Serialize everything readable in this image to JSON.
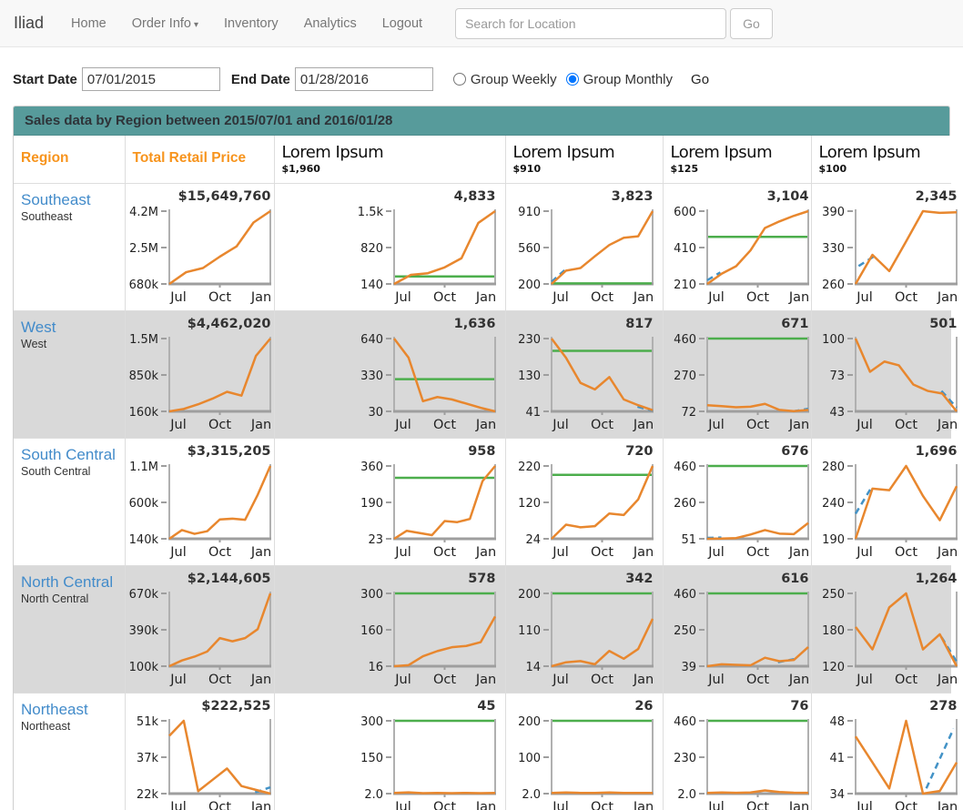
{
  "navbar": {
    "brand": "Iliad",
    "items": [
      {
        "label": "Home"
      },
      {
        "label": "Order Info",
        "caret": true
      },
      {
        "label": "Inventory"
      },
      {
        "label": "Analytics"
      },
      {
        "label": "Logout"
      }
    ],
    "search_placeholder": "Search for Location",
    "go_label": "Go"
  },
  "filters": {
    "start_label": "Start Date",
    "start_value": "07/01/2015",
    "end_label": "End Date",
    "end_value": "01/28/2016",
    "radio_weekly": "Group Weekly",
    "radio_monthly": "Group Monthly",
    "selected": "Group Monthly",
    "go_label": "Go"
  },
  "panel": {
    "heading": "Sales data by Region between 2015/07/01 and 2016/01/28"
  },
  "colors": {
    "accent_orange": "#f7941d",
    "line_orange": "#e8872e",
    "ref_green": "#4cae4c",
    "dash_blue": "#4292c6",
    "teal_header": "#579b9b",
    "row_shade": "#d9d9d9",
    "link_blue": "#428bca"
  },
  "table": {
    "columns": [
      {
        "label": "Region",
        "accent": true
      },
      {
        "label": "Total Retail Price",
        "accent": true
      },
      {
        "label": "Lorem Ipsum",
        "sub": "$1,960"
      },
      {
        "label": "Lorem Ipsum",
        "sub": "$910"
      },
      {
        "label": "Lorem Ipsum",
        "sub": "$125"
      },
      {
        "label": "Lorem Ipsum",
        "sub": "$100"
      }
    ],
    "xticks": [
      "Jul",
      "Oct",
      "Jan"
    ],
    "rows": [
      {
        "name": "Southeast",
        "sub": "Southeast",
        "shaded": false,
        "charts": [
          {
            "value": "$15,649,760",
            "yticks": [
              "4.2M",
              "2.5M",
              "680k"
            ],
            "ymin": 680,
            "ymax": 4200,
            "green": null,
            "points": [
              680,
              1250,
              1450,
              2000,
              2500,
              3650,
              4200
            ],
            "dash": null
          },
          {
            "value": "4,833",
            "yticks": [
              "1.5k",
              "820",
              "140"
            ],
            "ymin": 140,
            "ymax": 1500,
            "green": 280,
            "points": [
              140,
              310,
              340,
              450,
              620,
              1280,
              1500
            ],
            "dash": null
          },
          {
            "value": "3,823",
            "yticks": [
              "910",
              "560",
              "200"
            ],
            "ymin": 200,
            "ymax": 910,
            "green": 206,
            "points": [
              200,
              330,
              355,
              470,
              580,
              650,
              665,
              910
            ],
            "dash": [
              [
                0,
                222
              ],
              [
                0.13,
                335
              ]
            ]
          },
          {
            "value": "3,104",
            "yticks": [
              "600",
              "410",
              "210"
            ],
            "ymin": 210,
            "ymax": 600,
            "green": 462,
            "points": [
              210,
              265,
              305,
              390,
              510,
              545,
              575,
              600
            ],
            "dash": [
              [
                0,
                230
              ],
              [
                0.13,
                272
              ]
            ]
          },
          {
            "value": "2,345",
            "yticks": [
              "390",
              "330",
              "260"
            ],
            "ymin": 260,
            "ymax": 390,
            "green": null,
            "points": [
              260,
              312,
              283,
              336,
              390,
              387,
              388
            ],
            "dash": [
              [
                0.03,
                292
              ],
              [
                0.18,
                309
              ]
            ]
          }
        ]
      },
      {
        "name": "West",
        "sub": "West",
        "shaded": true,
        "charts": [
          {
            "value": "$4,462,020",
            "yticks": [
              "1.5M",
              "850k",
              "160k"
            ],
            "ymin": 160,
            "ymax": 1500,
            "green": null,
            "points": [
              160,
              205,
              290,
              395,
              520,
              450,
              1180,
              1500
            ],
            "dash": null
          },
          {
            "value": "1,636",
            "yticks": [
              "640",
              "330",
              "30"
            ],
            "ymin": 30,
            "ymax": 640,
            "green": 300,
            "points": [
              640,
              480,
              115,
              150,
              130,
              95,
              60,
              30
            ],
            "dash": null
          },
          {
            "value": "817",
            "yticks": [
              "230",
              "130",
              "41"
            ],
            "ymin": 41,
            "ymax": 230,
            "green": 198,
            "points": [
              230,
              180,
              115,
              98,
              130,
              72,
              57,
              44
            ],
            "dash": [
              [
                0.85,
                53
              ],
              [
                1,
                43
              ]
            ]
          },
          {
            "value": "671",
            "yticks": [
              "460",
              "270",
              "72"
            ],
            "ymin": 72,
            "ymax": 460,
            "green": 460,
            "points": [
              105,
              100,
              94,
              97,
              112,
              80,
              73,
              80
            ],
            "dash": [
              [
                0.85,
                72
              ],
              [
                1,
                86
              ]
            ]
          },
          {
            "value": "501",
            "yticks": [
              "100",
              "73",
              "43"
            ],
            "ymin": 43,
            "ymax": 100,
            "green": null,
            "points": [
              100,
              74,
              82,
              79,
              64,
              59,
              57,
              43
            ],
            "dash": [
              [
                0.85,
                59
              ],
              [
                1,
                46
              ]
            ]
          }
        ]
      },
      {
        "name": "South Central",
        "sub": "South Central",
        "shaded": false,
        "charts": [
          {
            "value": "$3,315,205",
            "yticks": [
              "1.1M",
              "600k",
              "140k"
            ],
            "ymin": 140,
            "ymax": 1100,
            "green": null,
            "points": [
              140,
              255,
              205,
              240,
              395,
              405,
              390,
              720,
              1100
            ],
            "dash": null
          },
          {
            "value": "958",
            "yticks": [
              "360",
              "190",
              "23"
            ],
            "ymin": 23,
            "ymax": 360,
            "green": 305,
            "points": [
              23,
              60,
              50,
              40,
              105,
              100,
              115,
              290,
              360
            ],
            "dash": null
          },
          {
            "value": "720",
            "yticks": [
              "220",
              "120",
              "24"
            ],
            "ymin": 24,
            "ymax": 220,
            "green": 196,
            "points": [
              24,
              62,
              55,
              58,
              92,
              88,
              130,
              220
            ],
            "dash": null
          },
          {
            "value": "676",
            "yticks": [
              "460",
              "260",
              "51"
            ],
            "ymin": 51,
            "ymax": 460,
            "green": 460,
            "points": [
              51,
              52,
              55,
              75,
              100,
              80,
              77,
              140
            ],
            "dash": [
              [
                0,
                56
              ],
              [
                0.14,
                58
              ]
            ]
          },
          {
            "value": "1,696",
            "yticks": [
              "280",
              "240",
              "190"
            ],
            "ymin": 190,
            "ymax": 280,
            "green": null,
            "points": [
              190,
              252,
              250,
              280,
              243,
              213,
              255
            ],
            "dash": [
              [
                0,
                221
              ],
              [
                0.15,
                252
              ]
            ]
          }
        ]
      },
      {
        "name": "North Central",
        "sub": "North Central",
        "shaded": true,
        "charts": [
          {
            "value": "$2,144,605",
            "yticks": [
              "670k",
              "390k",
              "100k"
            ],
            "ymin": 100,
            "ymax": 670,
            "green": null,
            "points": [
              100,
              145,
              175,
              215,
              320,
              295,
              320,
              390,
              670
            ],
            "dash": null
          },
          {
            "value": "578",
            "yticks": [
              "300",
              "160",
              "16"
            ],
            "ymin": 16,
            "ymax": 300,
            "green": 300,
            "points": [
              16,
              20,
              55,
              75,
              90,
              95,
              110,
              210
            ],
            "dash": null
          },
          {
            "value": "342",
            "yticks": [
              "200",
              "110",
              "14"
            ],
            "ymin": 14,
            "ymax": 200,
            "green": 200,
            "points": [
              14,
              24,
              27,
              19,
              53,
              33,
              58,
              135
            ],
            "dash": null
          },
          {
            "value": "616",
            "yticks": [
              "460",
              "250",
              "39"
            ],
            "ymin": 39,
            "ymax": 460,
            "green": 460,
            "points": [
              39,
              50,
              47,
              44,
              88,
              68,
              75,
              150
            ],
            "dash": [
              [
                0.7,
                62
              ],
              [
                0.86,
                80
              ]
            ]
          },
          {
            "value": "1,264",
            "yticks": [
              "250",
              "180",
              "120"
            ],
            "ymin": 120,
            "ymax": 250,
            "green": null,
            "points": [
              190,
              150,
              225,
              250,
              150,
              177,
              120
            ],
            "dash": [
              [
                0.85,
                172
              ],
              [
                1,
                128
              ]
            ]
          }
        ]
      },
      {
        "name": "Northeast",
        "sub": "Northeast",
        "shaded": false,
        "charts": [
          {
            "value": "$222,525",
            "yticks": [
              "51k",
              "37k",
              "22k"
            ],
            "ymin": 22,
            "ymax": 51,
            "green": null,
            "points": [
              45,
              51,
              23,
              27.5,
              32,
              25,
              23.5,
              22
            ],
            "dash": [
              [
                0.85,
                22.5
              ],
              [
                1,
                24.5
              ]
            ]
          },
          {
            "value": "45",
            "yticks": [
              "300",
              "150",
              "2.0"
            ],
            "ymin": 2,
            "ymax": 300,
            "green": 300,
            "points": [
              5,
              7,
              4,
              5,
              4,
              5,
              4,
              5
            ],
            "dash": null
          },
          {
            "value": "26",
            "yticks": [
              "200",
              "100",
              "2.0"
            ],
            "ymin": 2,
            "ymax": 200,
            "green": 200,
            "points": [
              4,
              5,
              4,
              4,
              5,
              4,
              4,
              4
            ],
            "dash": null
          },
          {
            "value": "76",
            "yticks": [
              "460",
              "230",
              "2.0"
            ],
            "ymin": 2,
            "ymax": 460,
            "green": 460,
            "points": [
              6,
              9,
              7,
              9,
              22,
              12,
              8,
              7
            ],
            "dash": null
          },
          {
            "value": "278",
            "yticks": [
              "48",
              "41",
              "34"
            ],
            "ymin": 34,
            "ymax": 48,
            "green": null,
            "points": [
              45,
              40,
              35,
              48,
              34,
              34.5,
              40
            ],
            "dash": [
              [
                0.7,
                35
              ],
              [
                0.97,
                46.5
              ]
            ]
          }
        ]
      }
    ]
  }
}
